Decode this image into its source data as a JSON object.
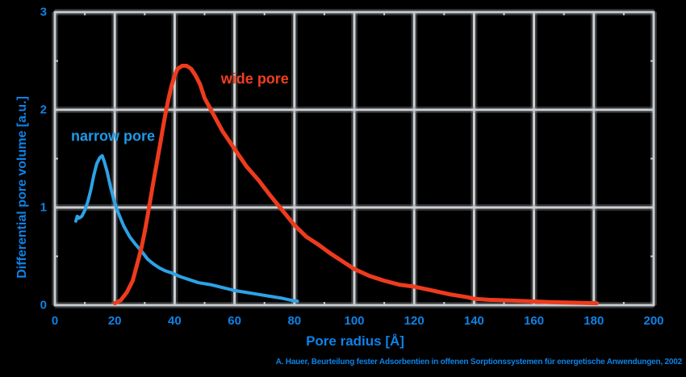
{
  "caption": "A. Hauer, Beurteilung fester Adsorbentien in offenen Sorptionssystemen für energetische Anwendungen, 2002",
  "colors": {
    "background": "#000000",
    "grid": "#ccd0d4",
    "grid_glow": "#8a8d90",
    "frame": "#c6cbcf",
    "axis_text": "#0e82e6",
    "caption_text": "#0e82e6",
    "narrow_curve": "#2da2e6",
    "narrow_label": "#1e9ae8",
    "wide_curve": "#ee3b1d",
    "wide_label": "#f33f1f"
  },
  "chart_data": {
    "type": "line",
    "title": "",
    "xlabel": "Pore radius [Å]",
    "ylabel": "Differential pore volume [a.u.]",
    "xlim": [
      0,
      200
    ],
    "ylim": [
      0,
      3
    ],
    "x_ticks": [
      0,
      20,
      40,
      60,
      80,
      100,
      120,
      140,
      160,
      180,
      200
    ],
    "y_ticks": [
      0,
      1,
      2,
      3
    ],
    "grid": true,
    "legend_position": "inline-labels",
    "series": [
      {
        "name": "narrow pore",
        "label_pos": {
          "x": 19.4,
          "y": 1.73
        },
        "points": [
          [
            7,
            0.86
          ],
          [
            7.5,
            0.91
          ],
          [
            8,
            0.89
          ],
          [
            9,
            0.91
          ],
          [
            10,
            0.97
          ],
          [
            11,
            1.06
          ],
          [
            12,
            1.18
          ],
          [
            13,
            1.33
          ],
          [
            14,
            1.45
          ],
          [
            15,
            1.51
          ],
          [
            15.8,
            1.53
          ],
          [
            16.5,
            1.47
          ],
          [
            17.5,
            1.36
          ],
          [
            18.5,
            1.22
          ],
          [
            19.5,
            1.1
          ],
          [
            20.5,
            1.0
          ],
          [
            21.5,
            0.92
          ],
          [
            23,
            0.81
          ],
          [
            25,
            0.7
          ],
          [
            27,
            0.62
          ],
          [
            29,
            0.55
          ],
          [
            31,
            0.47
          ],
          [
            33,
            0.42
          ],
          [
            35,
            0.38
          ],
          [
            37,
            0.35
          ],
          [
            39,
            0.33
          ],
          [
            42,
            0.29
          ],
          [
            45,
            0.26
          ],
          [
            48,
            0.23
          ],
          [
            52,
            0.21
          ],
          [
            56,
            0.18
          ],
          [
            60,
            0.15
          ],
          [
            64,
            0.13
          ],
          [
            68,
            0.11
          ],
          [
            72,
            0.09
          ],
          [
            76,
            0.07
          ],
          [
            79,
            0.05
          ],
          [
            81,
            0.04
          ]
        ]
      },
      {
        "name": "wide pore",
        "label_pos": {
          "x": 66.8,
          "y": 2.31
        },
        "points": [
          [
            20,
            0.02
          ],
          [
            22,
            0.05
          ],
          [
            24,
            0.13
          ],
          [
            26,
            0.25
          ],
          [
            28,
            0.48
          ],
          [
            29,
            0.6
          ],
          [
            30,
            0.75
          ],
          [
            31,
            0.92
          ],
          [
            32,
            1.1
          ],
          [
            33,
            1.28
          ],
          [
            34,
            1.45
          ],
          [
            35,
            1.62
          ],
          [
            36,
            1.8
          ],
          [
            37,
            1.97
          ],
          [
            38,
            2.12
          ],
          [
            39,
            2.25
          ],
          [
            40,
            2.35
          ],
          [
            41,
            2.42
          ],
          [
            42.5,
            2.45
          ],
          [
            44,
            2.45
          ],
          [
            45.5,
            2.42
          ],
          [
            47,
            2.35
          ],
          [
            48.5,
            2.26
          ],
          [
            50,
            2.12
          ],
          [
            53,
            1.95
          ],
          [
            56,
            1.78
          ],
          [
            60,
            1.6
          ],
          [
            64,
            1.42
          ],
          [
            68,
            1.28
          ],
          [
            72,
            1.12
          ],
          [
            76,
            0.97
          ],
          [
            80,
            0.82
          ],
          [
            84,
            0.7
          ],
          [
            88,
            0.62
          ],
          [
            92,
            0.53
          ],
          [
            96,
            0.45
          ],
          [
            100,
            0.37
          ],
          [
            105,
            0.3
          ],
          [
            110,
            0.25
          ],
          [
            115,
            0.21
          ],
          [
            120,
            0.19
          ],
          [
            126,
            0.15
          ],
          [
            132,
            0.11
          ],
          [
            138,
            0.08
          ],
          [
            140,
            0.065
          ],
          [
            145,
            0.055
          ],
          [
            150,
            0.05
          ],
          [
            158,
            0.04
          ],
          [
            166,
            0.03
          ],
          [
            174,
            0.025
          ],
          [
            181,
            0.02
          ]
        ]
      }
    ]
  }
}
